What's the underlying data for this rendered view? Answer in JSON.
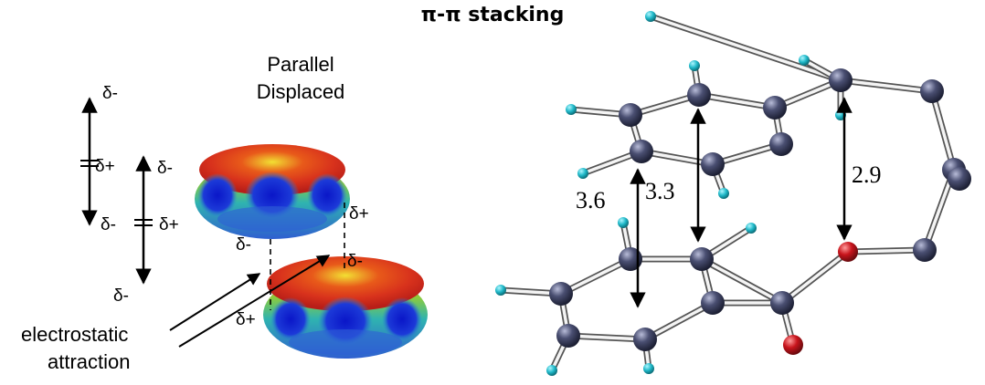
{
  "title": "π-π stacking",
  "left_panel": {
    "label_top": "Parallel",
    "label_bottom": "Displaced",
    "caption_line1": "electrostatic",
    "caption_line2": "attraction",
    "delta_minus": "δ-",
    "delta_plus": "δ+"
  },
  "right_panel": {
    "distances": [
      "3.6",
      "3.3",
      "2.9"
    ],
    "colors": {
      "carbon": "#4a4f72",
      "oxygen": "#c8141c",
      "hydrogen": "#1fb8c8"
    }
  }
}
